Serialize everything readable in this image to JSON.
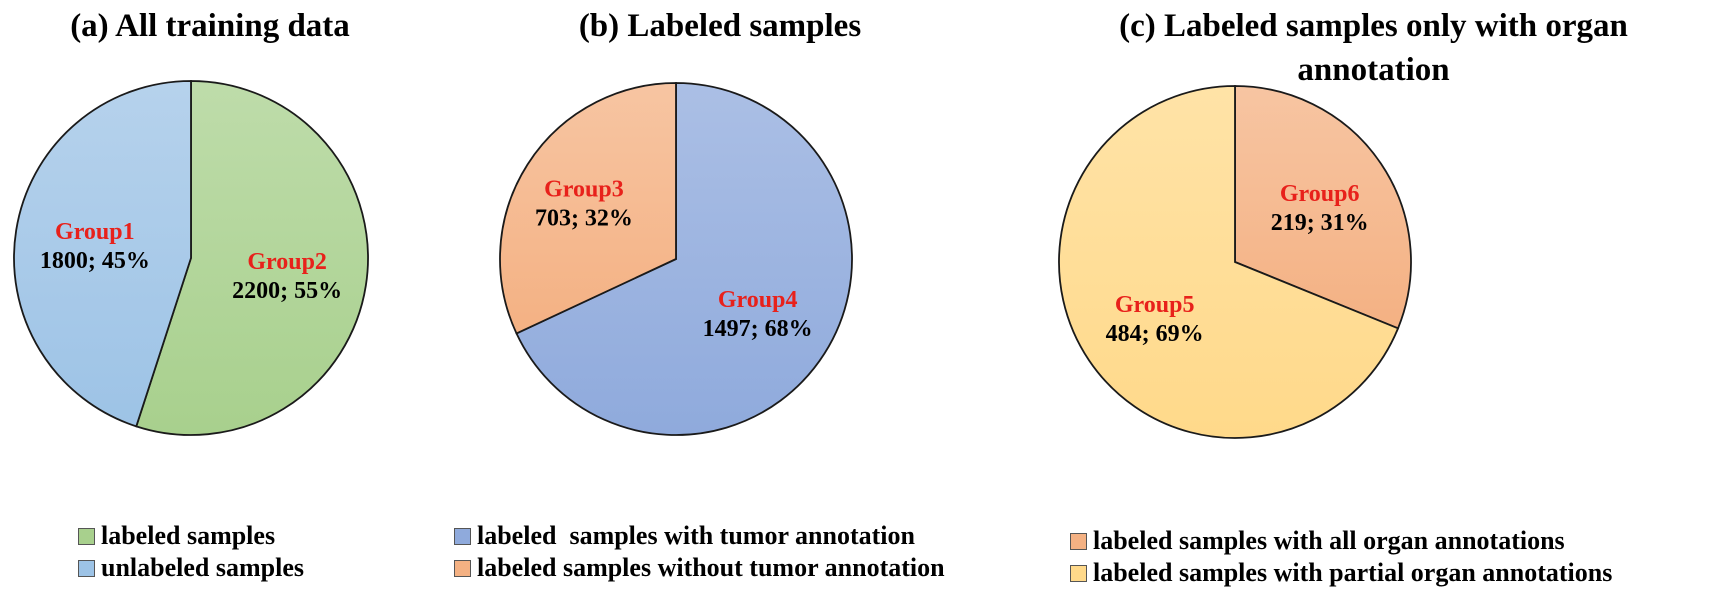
{
  "chart_data": [
    {
      "type": "pie",
      "title": "(a) All training data",
      "slices": [
        {
          "group": "Group2",
          "value": 2200,
          "percent": "55%",
          "color": "#a8d08d"
        },
        {
          "group": "Group1",
          "value": 1800,
          "percent": "45%",
          "color": "#9dc3e6"
        }
      ],
      "legend": [
        {
          "label": "labeled samples",
          "color": "#a8d08d"
        },
        {
          "label": "unlabeled samples",
          "color": "#9dc3e6"
        }
      ]
    },
    {
      "type": "pie",
      "title": "(b) Labeled samples",
      "slices": [
        {
          "group": "Group4",
          "value": 1497,
          "percent": "68%",
          "color": "#8faadc"
        },
        {
          "group": "Group3",
          "value": 703,
          "percent": "32%",
          "color": "#f4b183"
        }
      ],
      "legend": [
        {
          "label": "labeled  samples with tumor annotation",
          "color": "#8faadc"
        },
        {
          "label": "labeled samples without tumor annotation",
          "color": "#f4b183"
        }
      ]
    },
    {
      "type": "pie",
      "title": "(c) Labeled samples only with organ annotation",
      "slices": [
        {
          "group": "Group6",
          "value": 219,
          "percent": "31%",
          "color": "#f4b183"
        },
        {
          "group": "Group5",
          "value": 484,
          "percent": "69%",
          "color": "#ffd98a"
        }
      ],
      "legend": [
        {
          "label": "labeled samples with all organ annotations",
          "color": "#f4b183"
        },
        {
          "label": "labeled samples with partial organ annotations",
          "color": "#ffd98a"
        }
      ]
    }
  ]
}
